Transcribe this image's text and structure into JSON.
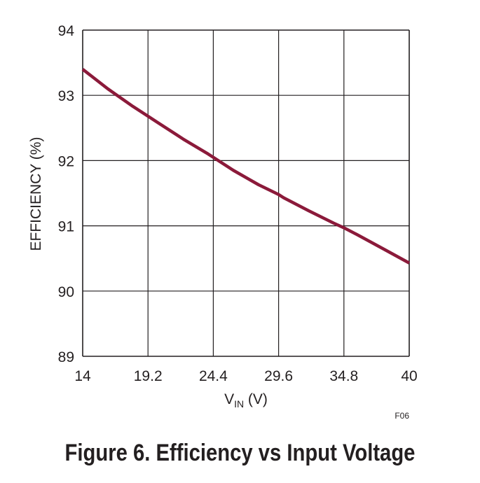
{
  "chart_data": {
    "type": "line",
    "xlabel": "V",
    "xlabel_sub": "IN",
    "xlabel_unit": " (V)",
    "ylabel": "EFFICIENCY (%)",
    "xlim": [
      14,
      40
    ],
    "ylim": [
      89,
      94
    ],
    "x_ticks": [
      "14",
      "19.2",
      "24.4",
      "29.6",
      "34.8",
      "40"
    ],
    "y_ticks": [
      "89",
      "90",
      "91",
      "92",
      "93",
      "94"
    ],
    "grid": true,
    "series": [
      {
        "x": [
          14,
          16,
          18,
          19.2,
          20,
          22,
          24,
          24.4,
          26,
          28,
          29.6,
          30,
          32,
          34,
          34.8,
          36,
          38,
          40
        ],
        "y": [
          93.4,
          93.1,
          92.83,
          92.68,
          92.58,
          92.33,
          92.1,
          92.05,
          91.85,
          91.63,
          91.48,
          91.43,
          91.23,
          91.04,
          90.97,
          90.85,
          90.64,
          90.43
        ]
      }
    ],
    "figure_code": "F06"
  },
  "caption": "Figure 6. Efficiency vs Input Voltage",
  "colors": {
    "line": "#8b1a3a",
    "grid": "#231f20",
    "text": "#231f20"
  }
}
